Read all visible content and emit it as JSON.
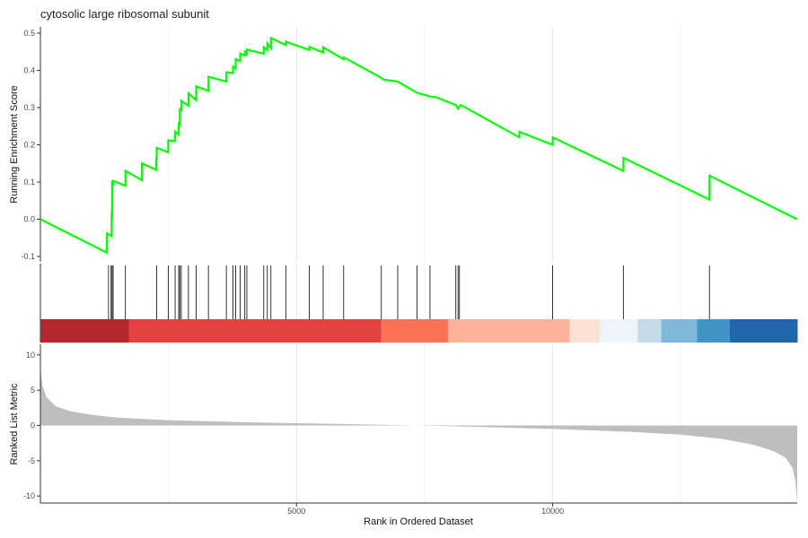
{
  "chart_data": {
    "type": "line",
    "title": "cytosolic large ribosomal subunit",
    "xlabel": "Rank in Ordered Dataset",
    "xlim": [
      0,
      14774
    ],
    "x_ticks": [
      5000,
      10000
    ],
    "grid": true,
    "legend": "none",
    "es_panel": {
      "ylabel": "Running Enrichment Score",
      "ylim": [
        -0.1,
        0.5
      ],
      "y_ticks": [
        -0.1,
        0.0,
        0.1,
        0.2,
        0.3,
        0.4,
        0.5
      ],
      "line_color": "#00ff00",
      "series": [
        {
          "x": [
            0,
            1300,
            1301,
            1390,
            1391,
            1400,
            1401,
            1420,
            1421,
            1660,
            1661,
            1980,
            1982,
            2260,
            2261,
            2270,
            2272,
            2495,
            2496,
            2630,
            2632,
            2700,
            2701,
            2720,
            2722,
            2750,
            2752,
            2890,
            2892,
            3040,
            3042,
            3280,
            3282,
            3630,
            3631,
            3760,
            3762,
            3810,
            3812,
            3900,
            3902,
            3990,
            3992,
            4030,
            4032,
            4360,
            4362,
            4430,
            4432,
            4500,
            4502,
            4790,
            4792,
            5250,
            5252,
            5520,
            5522,
            5920,
            5924,
            6655,
            6700,
            6975,
            7350,
            7605,
            7720,
            8110,
            8153,
            8180,
            8210,
            9350,
            9352,
            10000,
            10002,
            11380,
            11382,
            13060,
            13062,
            14774
          ],
          "y": [
            0,
            -0.09,
            -0.038,
            -0.045,
            0.01,
            0.008,
            0.103,
            0.09,
            0.103,
            0.09,
            0.13,
            0.105,
            0.15,
            0.133,
            0.167,
            0.16,
            0.192,
            0.18,
            0.212,
            0.21,
            0.235,
            0.228,
            0.26,
            0.25,
            0.298,
            0.29,
            0.318,
            0.305,
            0.338,
            0.32,
            0.357,
            0.345,
            0.383,
            0.37,
            0.395,
            0.393,
            0.41,
            0.405,
            0.43,
            0.425,
            0.445,
            0.44,
            0.453,
            0.44,
            0.456,
            0.445,
            0.462,
            0.455,
            0.472,
            0.46,
            0.487,
            0.468,
            0.477,
            0.455,
            0.463,
            0.448,
            0.462,
            0.43,
            0.435,
            0.38,
            0.375,
            0.37,
            0.34,
            0.33,
            0.328,
            0.307,
            0.297,
            0.303,
            0.307,
            0.22,
            0.235,
            0.2,
            0.22,
            0.13,
            0.165,
            0.053,
            0.117,
            0
          ]
        }
      ]
    },
    "hits_panel": {
      "hit_ranks": [
        1330,
        1380,
        1400,
        1420,
        1660,
        2270,
        2495,
        2630,
        2700,
        2720,
        2750,
        2890,
        3040,
        3280,
        3630,
        3760,
        3810,
        3900,
        3990,
        4030,
        4360,
        4430,
        4500,
        4790,
        5250,
        5520,
        5920,
        6655,
        6975,
        7350,
        7605,
        8110,
        8153,
        8180,
        10000,
        11380,
        13060
      ],
      "color_bands": [
        {
          "from": 0,
          "to": 1725,
          "color": "#b2282c"
        },
        {
          "from": 1725,
          "to": 6650,
          "color": "#e3423e"
        },
        {
          "from": 6650,
          "to": 7960,
          "color": "#fa7357"
        },
        {
          "from": 7960,
          "to": 10330,
          "color": "#fcb39a"
        },
        {
          "from": 10330,
          "to": 10920,
          "color": "#fee1d5"
        },
        {
          "from": 10920,
          "to": 11660,
          "color": "#eff3fa"
        },
        {
          "from": 11660,
          "to": 12120,
          "color": "#c5dbe9"
        },
        {
          "from": 12120,
          "to": 12820,
          "color": "#80b8db"
        },
        {
          "from": 12820,
          "to": 13460,
          "color": "#4293c5"
        },
        {
          "from": 13460,
          "to": 14774,
          "color": "#2166ac"
        }
      ]
    },
    "metric_panel": {
      "ylabel": "Ranked List Metric",
      "ylim": [
        -11,
        11.5
      ],
      "y_ticks": [
        10,
        5,
        0,
        -5,
        -10
      ],
      "fill_color": "#bebebe",
      "series": [
        {
          "x": [
            0,
            10,
            40,
            120,
            300,
            600,
            1000,
            1500,
            2500,
            4000,
            5500,
            7000,
            8500,
            10000,
            11500,
            12500,
            13300,
            13900,
            14300,
            14550,
            14680,
            14740,
            14774
          ],
          "y": [
            9.5,
            7.4,
            5.6,
            4.0,
            2.7,
            2.0,
            1.5,
            1.1,
            0.75,
            0.45,
            0.25,
            0.05,
            -0.2,
            -0.5,
            -0.9,
            -1.3,
            -1.9,
            -2.7,
            -3.6,
            -4.6,
            -6.0,
            -8.0,
            -11.0
          ]
        }
      ]
    }
  }
}
